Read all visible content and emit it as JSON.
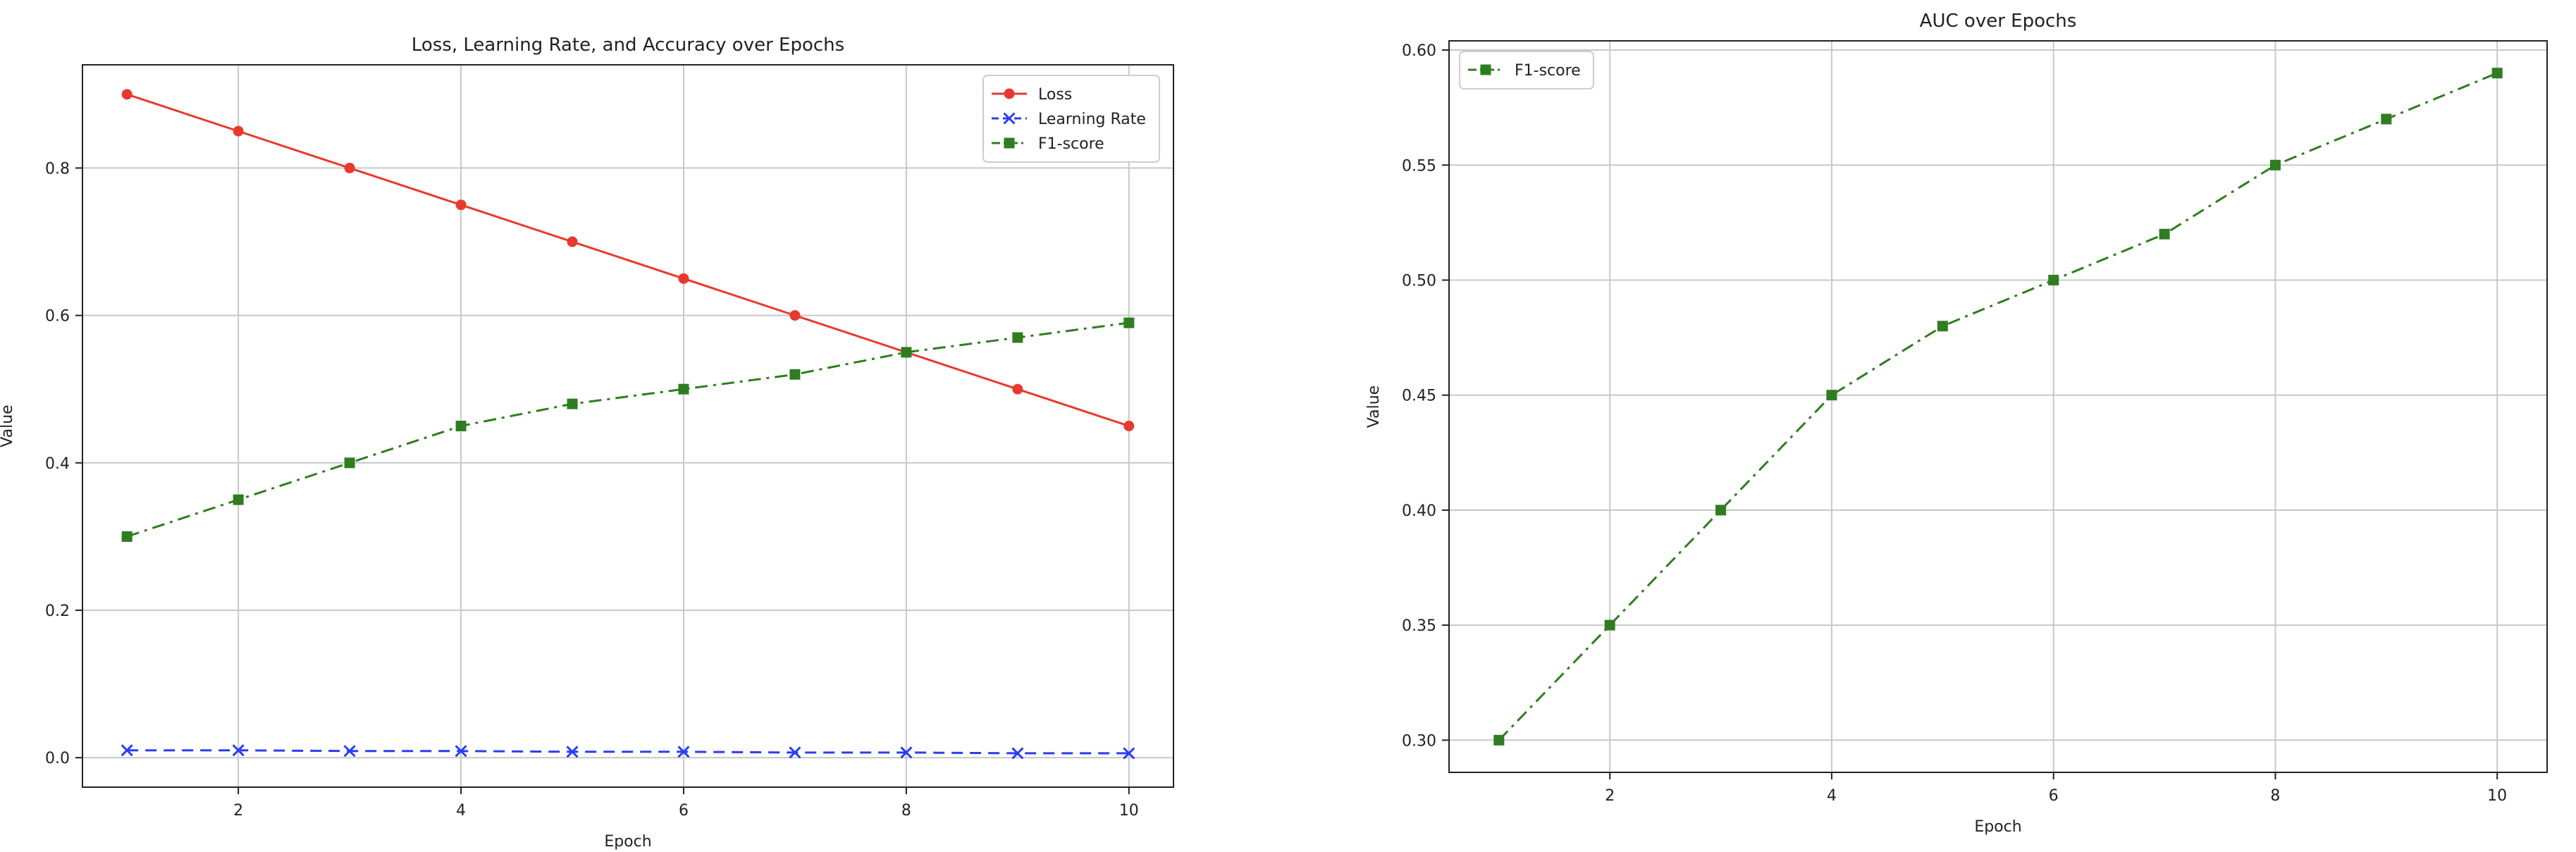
{
  "chart_data": [
    {
      "type": "line",
      "title": "Loss, Learning Rate, and Accuracy over Epochs",
      "xlabel": "Epoch",
      "ylabel": "Value",
      "x": [
        1,
        2,
        3,
        4,
        5,
        6,
        7,
        8,
        9,
        10
      ],
      "xlim": [
        0.6,
        10.4
      ],
      "ylim": [
        -0.04,
        0.94
      ],
      "xticks": [
        2,
        4,
        6,
        8,
        10
      ],
      "yticks": [
        0.0,
        0.2,
        0.4,
        0.6,
        0.8
      ],
      "ytick_labels": [
        "0.0",
        "0.2",
        "0.4",
        "0.6",
        "0.8"
      ],
      "grid": true,
      "legend_position": "top-right",
      "series": [
        {
          "name": "Loss",
          "color": "#e8392f",
          "marker": "circle",
          "line_style": "solid",
          "values": [
            0.9,
            0.85,
            0.8,
            0.75,
            0.7,
            0.65,
            0.6,
            0.55,
            0.5,
            0.45
          ]
        },
        {
          "name": "Learning Rate",
          "color": "#2a3df5",
          "marker": "x",
          "line_style": "dashed",
          "values": [
            0.01,
            0.01,
            0.009,
            0.009,
            0.008,
            0.008,
            0.007,
            0.007,
            0.006,
            0.006
          ]
        },
        {
          "name": "F1-score",
          "color": "#2f7d20",
          "marker": "square",
          "line_style": "dash-dot",
          "values": [
            0.3,
            0.35,
            0.4,
            0.45,
            0.48,
            0.5,
            0.52,
            0.55,
            0.57,
            0.59
          ]
        }
      ]
    },
    {
      "type": "line",
      "title": "AUC over Epochs",
      "xlabel": "Epoch",
      "ylabel": "Value",
      "x": [
        1,
        2,
        3,
        4,
        5,
        6,
        7,
        8,
        9,
        10
      ],
      "xlim": [
        0.55,
        10.45
      ],
      "ylim": [
        0.286,
        0.604
      ],
      "xticks": [
        2,
        4,
        6,
        8,
        10
      ],
      "yticks": [
        0.3,
        0.35,
        0.4,
        0.45,
        0.5,
        0.55,
        0.6
      ],
      "ytick_labels": [
        "0.30",
        "0.35",
        "0.40",
        "0.45",
        "0.50",
        "0.55",
        "0.60"
      ],
      "grid": true,
      "legend_position": "top-left",
      "series": [
        {
          "name": "F1-score",
          "color": "#2f7d20",
          "marker": "square",
          "line_style": "dash-dot",
          "values": [
            0.3,
            0.35,
            0.4,
            0.45,
            0.48,
            0.5,
            0.52,
            0.55,
            0.57,
            0.59
          ]
        }
      ]
    }
  ]
}
